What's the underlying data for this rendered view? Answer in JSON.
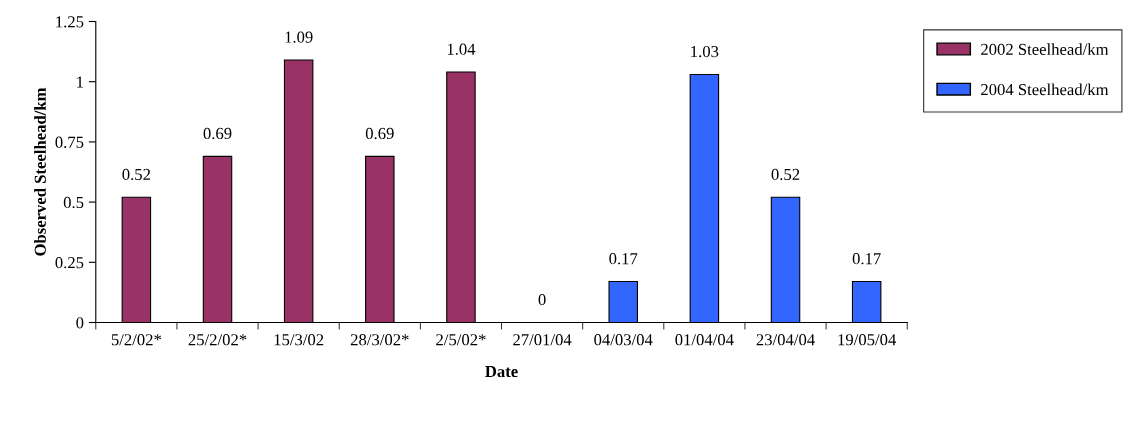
{
  "chart_data": {
    "type": "bar",
    "xlabel": "Date",
    "ylabel": "Observed Steelhead/km",
    "categories": [
      "5/2/02*",
      "25/2/02*",
      "15/3/02",
      "28/3/02*",
      "2/5/02*",
      "27/01/04",
      "04/03/04",
      "01/04/04",
      "23/04/04",
      "19/05/04"
    ],
    "series": [
      {
        "name": "2002 Steelhead/km",
        "color": "#993366",
        "values": [
          0.52,
          0.69,
          1.09,
          0.69,
          1.04,
          null,
          null,
          null,
          null,
          null
        ]
      },
      {
        "name": "2004 Steelhead/km",
        "color": "#3366ff",
        "values": [
          null,
          null,
          null,
          null,
          null,
          0,
          0.17,
          1.03,
          0.52,
          0.17
        ]
      }
    ],
    "ylim": [
      0,
      1.25
    ],
    "yticks": [
      0,
      0.25,
      0.5,
      0.75,
      1,
      1.25
    ],
    "data_labels": true,
    "legend": "top right",
    "grid": false
  }
}
